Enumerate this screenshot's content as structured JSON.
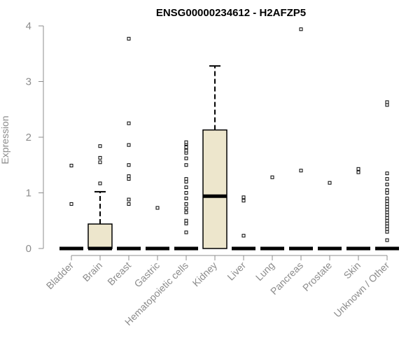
{
  "chart_data": {
    "type": "boxplot",
    "title": "ENSG00000234612 - H2AFZP5",
    "xlabel": "",
    "ylabel": "Expression",
    "ylim": [
      0,
      4
    ],
    "yticks": [
      0,
      1,
      2,
      3,
      4
    ],
    "grid": false,
    "colors": {
      "box_fill": "#ede6cc",
      "stroke": "#000000",
      "axis": "#8c8c8c"
    },
    "categories": [
      "Bladder",
      "Brain",
      "Breast",
      "Gastric",
      "Hematopoietic cells",
      "Kidney",
      "Liver",
      "Lung",
      "Pancreas",
      "Prostate",
      "Skin",
      "Unknown / Other"
    ],
    "boxes": [
      {
        "category": "Bladder",
        "q1": 0,
        "median": 0,
        "q3": 0,
        "whisker_low": 0,
        "whisker_high": 0,
        "outliers": [
          0.8,
          1.49
        ]
      },
      {
        "category": "Brain",
        "q1": 0,
        "median": 0,
        "q3": 0.44,
        "whisker_low": 0,
        "whisker_high": 1.02,
        "outliers": [
          1.17,
          1.55,
          1.63,
          1.84
        ]
      },
      {
        "category": "Breast",
        "q1": 0,
        "median": 0,
        "q3": 0,
        "whisker_low": 0,
        "whisker_high": 0,
        "outliers": [
          0.8,
          0.88,
          1.25,
          1.3,
          1.5,
          1.86,
          2.25,
          3.77
        ]
      },
      {
        "category": "Gastric",
        "q1": 0,
        "median": 0,
        "q3": 0,
        "whisker_low": 0,
        "whisker_high": 0,
        "outliers": [
          0.73
        ]
      },
      {
        "category": "Hematopoietic cells",
        "q1": 0,
        "median": 0,
        "q3": 0,
        "whisker_low": 0,
        "whisker_high": 0,
        "outliers": [
          0.29,
          0.45,
          0.5,
          0.65,
          0.72,
          0.8,
          0.9,
          1.0,
          1.1,
          1.2,
          1.25,
          1.5,
          1.62,
          1.72,
          1.76,
          1.82,
          1.88,
          1.91
        ]
      },
      {
        "category": "Kidney",
        "q1": 0,
        "median": 0.94,
        "q3": 2.13,
        "whisker_low": 0,
        "whisker_high": 3.28,
        "outliers": []
      },
      {
        "category": "Liver",
        "q1": 0,
        "median": 0,
        "q3": 0,
        "whisker_low": 0,
        "whisker_high": 0,
        "outliers": [
          0.23,
          0.86,
          0.92
        ]
      },
      {
        "category": "Lung",
        "q1": 0,
        "median": 0,
        "q3": 0,
        "whisker_low": 0,
        "whisker_high": 0,
        "outliers": [
          1.28
        ]
      },
      {
        "category": "Pancreas",
        "q1": 0,
        "median": 0,
        "q3": 0,
        "whisker_low": 0,
        "whisker_high": 0,
        "outliers": [
          1.4,
          3.94
        ]
      },
      {
        "category": "Prostate",
        "q1": 0,
        "median": 0,
        "q3": 0,
        "whisker_low": 0,
        "whisker_high": 0,
        "outliers": [
          1.18
        ]
      },
      {
        "category": "Skin",
        "q1": 0,
        "median": 0,
        "q3": 0,
        "whisker_low": 0,
        "whisker_high": 0,
        "outliers": [
          1.37,
          1.43
        ]
      },
      {
        "category": "Unknown / Other",
        "q1": 0,
        "median": 0,
        "q3": 0,
        "whisker_low": 0,
        "whisker_high": 0,
        "outliers": [
          0.15,
          0.3,
          0.35,
          0.4,
          0.45,
          0.5,
          0.55,
          0.6,
          0.65,
          0.7,
          0.75,
          0.8,
          0.85,
          0.9,
          1.0,
          1.05,
          1.15,
          1.25,
          1.35,
          2.58,
          2.63
        ]
      }
    ]
  }
}
